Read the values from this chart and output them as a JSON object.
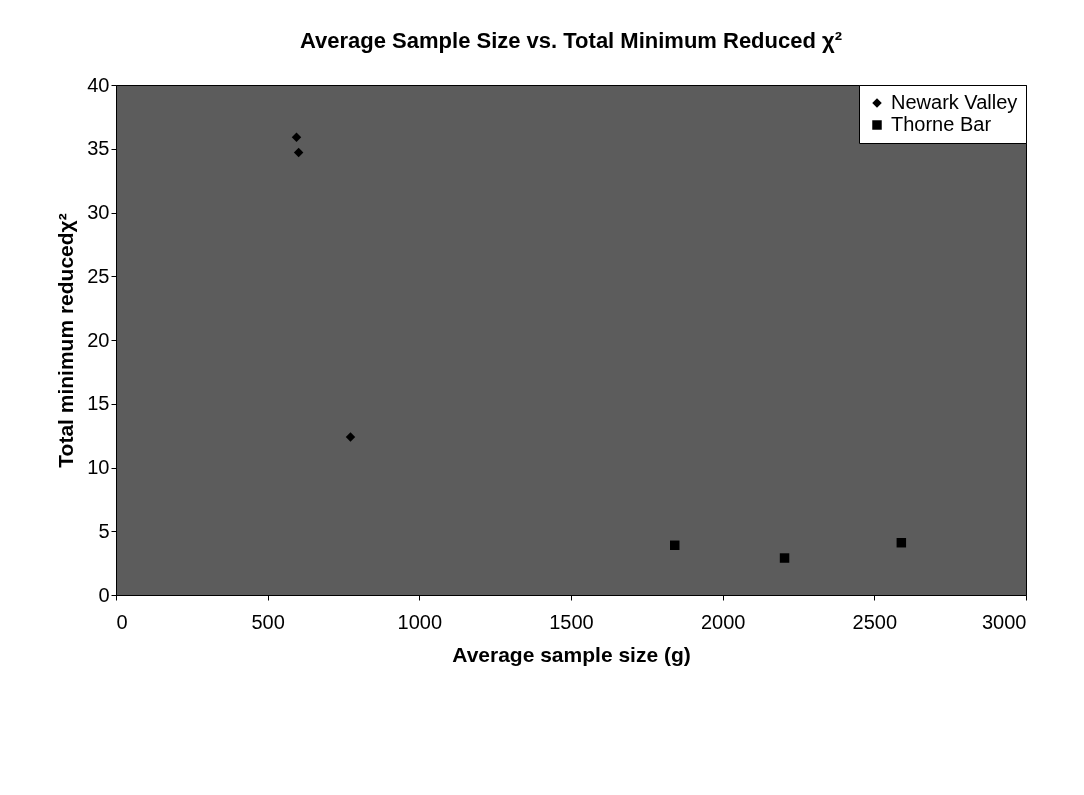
{
  "chart_data": {
    "type": "scatter",
    "title": "Average Sample Size vs. Total Minimum Reduced χ²",
    "xlabel": "Average sample size (g)",
    "ylabel": "Total minimum reducedχ²",
    "xlim": [
      0,
      3000
    ],
    "xticks": [
      0,
      500,
      1000,
      1500,
      2000,
      2500,
      3000
    ],
    "ylim": [
      0,
      40
    ],
    "yticks": [
      0,
      5,
      10,
      15,
      20,
      25,
      30,
      35,
      40
    ],
    "grid": false,
    "legend": "top right",
    "series": [
      {
        "name": "Newark Valley",
        "color": "#000000",
        "marker": "diamond",
        "x": [
          595,
          602,
          773
        ],
        "values": [
          35.9,
          34.7,
          12.4
        ]
      },
      {
        "name": "Thorne Bar",
        "color": "#000000",
        "marker": "square",
        "x": [
          1842,
          2204,
          2589
        ],
        "values": [
          3.9,
          2.9,
          4.1
        ]
      }
    ]
  }
}
